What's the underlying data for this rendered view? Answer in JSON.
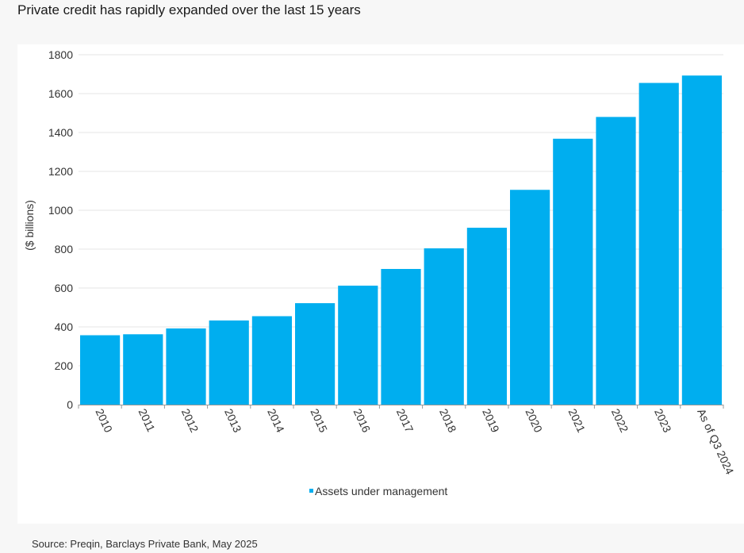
{
  "chart_data": {
    "type": "bar",
    "title": "Private credit has rapidly expanded over the last 15 years",
    "categories": [
      "2010",
      "2011",
      "2012",
      "2013",
      "2014",
      "2015",
      "2016",
      "2017",
      "2018",
      "2019",
      "2020",
      "2021",
      "2022",
      "2023",
      "As of Q3 2024"
    ],
    "series": [
      {
        "name": "Assets under management",
        "values": [
          357,
          362,
          392,
          433,
          455,
          522,
          612,
          698,
          804,
          910,
          1105,
          1368,
          1480,
          1655,
          1693
        ]
      }
    ],
    "ylabel": "($ billions)",
    "xlabel": "",
    "ylim": [
      0,
      1800
    ],
    "yticks": [
      0,
      200,
      400,
      600,
      800,
      1000,
      1200,
      1400,
      1600,
      1800
    ],
    "legend_position": "bottom-center",
    "grid": true,
    "colors": {
      "bar": "#00aeef",
      "grid": "#e6e6e6",
      "axis": "#999999"
    }
  },
  "source": "Source: Preqin, Barclays Private Bank, May 2025"
}
